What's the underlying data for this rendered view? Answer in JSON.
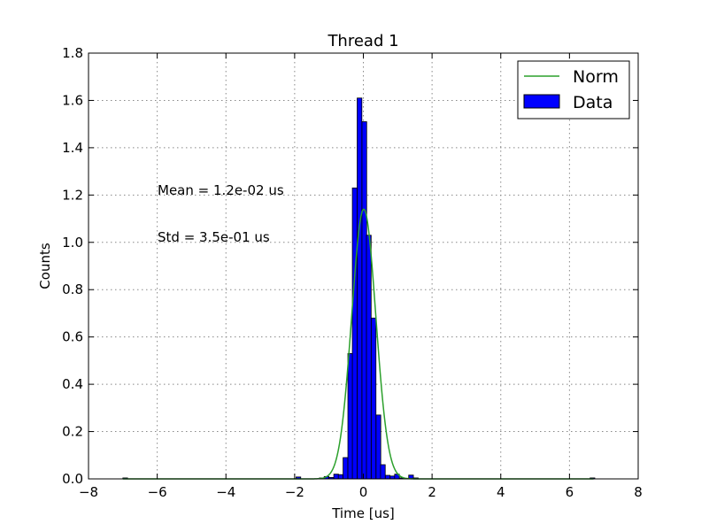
{
  "chart_data": {
    "type": "bar",
    "title": "Thread 1",
    "xlabel": "Time [us]",
    "ylabel": "Counts",
    "xlim": [
      -8,
      8
    ],
    "ylim": [
      0,
      1.8
    ],
    "x_ticks": [
      -8,
      -6,
      -4,
      -2,
      0,
      2,
      4,
      6,
      8
    ],
    "y_ticks": [
      0.0,
      0.2,
      0.4,
      0.6,
      0.8,
      1.0,
      1.2,
      1.4,
      1.6,
      1.8
    ],
    "x_tick_labels": [
      "−8",
      "−6",
      "−4",
      "−2",
      "0",
      "2",
      "4",
      "6",
      "8"
    ],
    "y_tick_labels": [
      "0.0",
      "0.2",
      "0.4",
      "0.6",
      "0.8",
      "1.0",
      "1.2",
      "1.4",
      "1.6",
      "1.8"
    ],
    "grid": true,
    "legend_position": "top-right",
    "bin_width": 0.137,
    "bins": [
      {
        "x0": -7.0,
        "value": 0.004
      },
      {
        "x0": -1.96,
        "value": 0.008
      },
      {
        "x0": -1.28,
        "value": 0.004
      },
      {
        "x0": -1.14,
        "value": 0.01
      },
      {
        "x0": -1.0,
        "value": 0.006
      },
      {
        "x0": -0.86,
        "value": 0.02
      },
      {
        "x0": -0.73,
        "value": 0.018
      },
      {
        "x0": -0.59,
        "value": 0.09
      },
      {
        "x0": -0.45,
        "value": 0.53
      },
      {
        "x0": -0.32,
        "value": 1.23
      },
      {
        "x0": -0.18,
        "value": 1.61
      },
      {
        "x0": -0.04,
        "value": 1.51
      },
      {
        "x0": 0.09,
        "value": 1.03
      },
      {
        "x0": 0.23,
        "value": 0.68
      },
      {
        "x0": 0.37,
        "value": 0.27
      },
      {
        "x0": 0.5,
        "value": 0.06
      },
      {
        "x0": 0.64,
        "value": 0.015
      },
      {
        "x0": 0.78,
        "value": 0.012
      },
      {
        "x0": 0.91,
        "value": 0.02
      },
      {
        "x0": 1.05,
        "value": 0.004
      },
      {
        "x0": 1.32,
        "value": 0.016
      },
      {
        "x0": 1.46,
        "value": 0.004
      },
      {
        "x0": 6.6,
        "value": 0.004
      }
    ],
    "normal_fit": {
      "mean": 0.012,
      "std": 0.35,
      "peak": 1.14,
      "color": "#2ca02c"
    },
    "series": [
      {
        "name": "Norm",
        "type": "line",
        "color": "#2ca02c"
      },
      {
        "name": "Data",
        "type": "bar",
        "color": "#0000ff"
      }
    ],
    "annotations": [
      "Mean = 1.2e-02 us",
      "Std = 3.5e-01 us"
    ]
  }
}
